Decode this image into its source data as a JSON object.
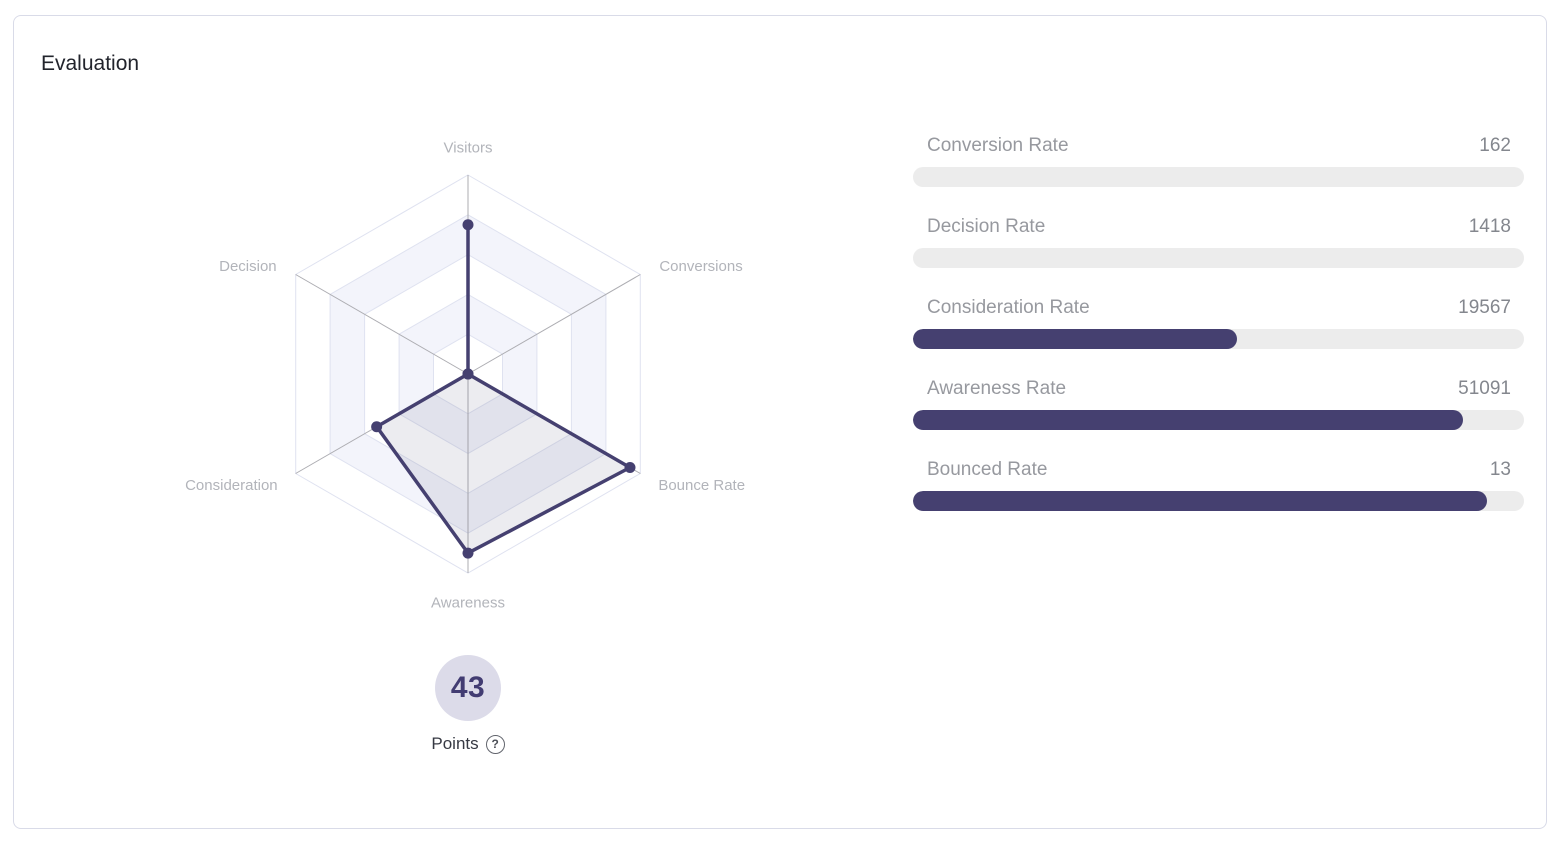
{
  "card": {
    "title": "Evaluation"
  },
  "score": {
    "points": "43",
    "label": "Points",
    "help_icon": "?"
  },
  "colors": {
    "accent": "#454070",
    "area_fill": "rgba(69,64,112,0.10)",
    "ring_alt": "#f3f4fb",
    "ring_stroke": "#dfe2f0",
    "spoke": "#adadb2",
    "axis_label": "#b2b4ba",
    "track": "#ececec",
    "badge_bg": "#dcdbe9",
    "badge_text": "#423c72"
  },
  "chart_data": [
    {
      "type": "radar",
      "title": "",
      "axes": [
        "Visitors",
        "Conversions",
        "Bounce Rate",
        "Awareness",
        "Consideration",
        "Decision"
      ],
      "values_pct": [
        75,
        0,
        94,
        90,
        53,
        0
      ],
      "max": 100,
      "rings": 5,
      "grid": "hexagon, 5 alternating bands",
      "legend": "none"
    },
    {
      "type": "bar",
      "title": "",
      "orientation": "horizontal-progress",
      "bars": [
        {
          "label": "Conversion Rate",
          "value": "162",
          "percent": 0
        },
        {
          "label": "Decision Rate",
          "value": "1418",
          "percent": 0
        },
        {
          "label": "Consideration Rate",
          "value": "19567",
          "percent": 53
        },
        {
          "label": "Awareness Rate",
          "value": "51091",
          "percent": 90
        },
        {
          "label": "Bounced Rate",
          "value": "13",
          "percent": 94
        }
      ]
    }
  ]
}
